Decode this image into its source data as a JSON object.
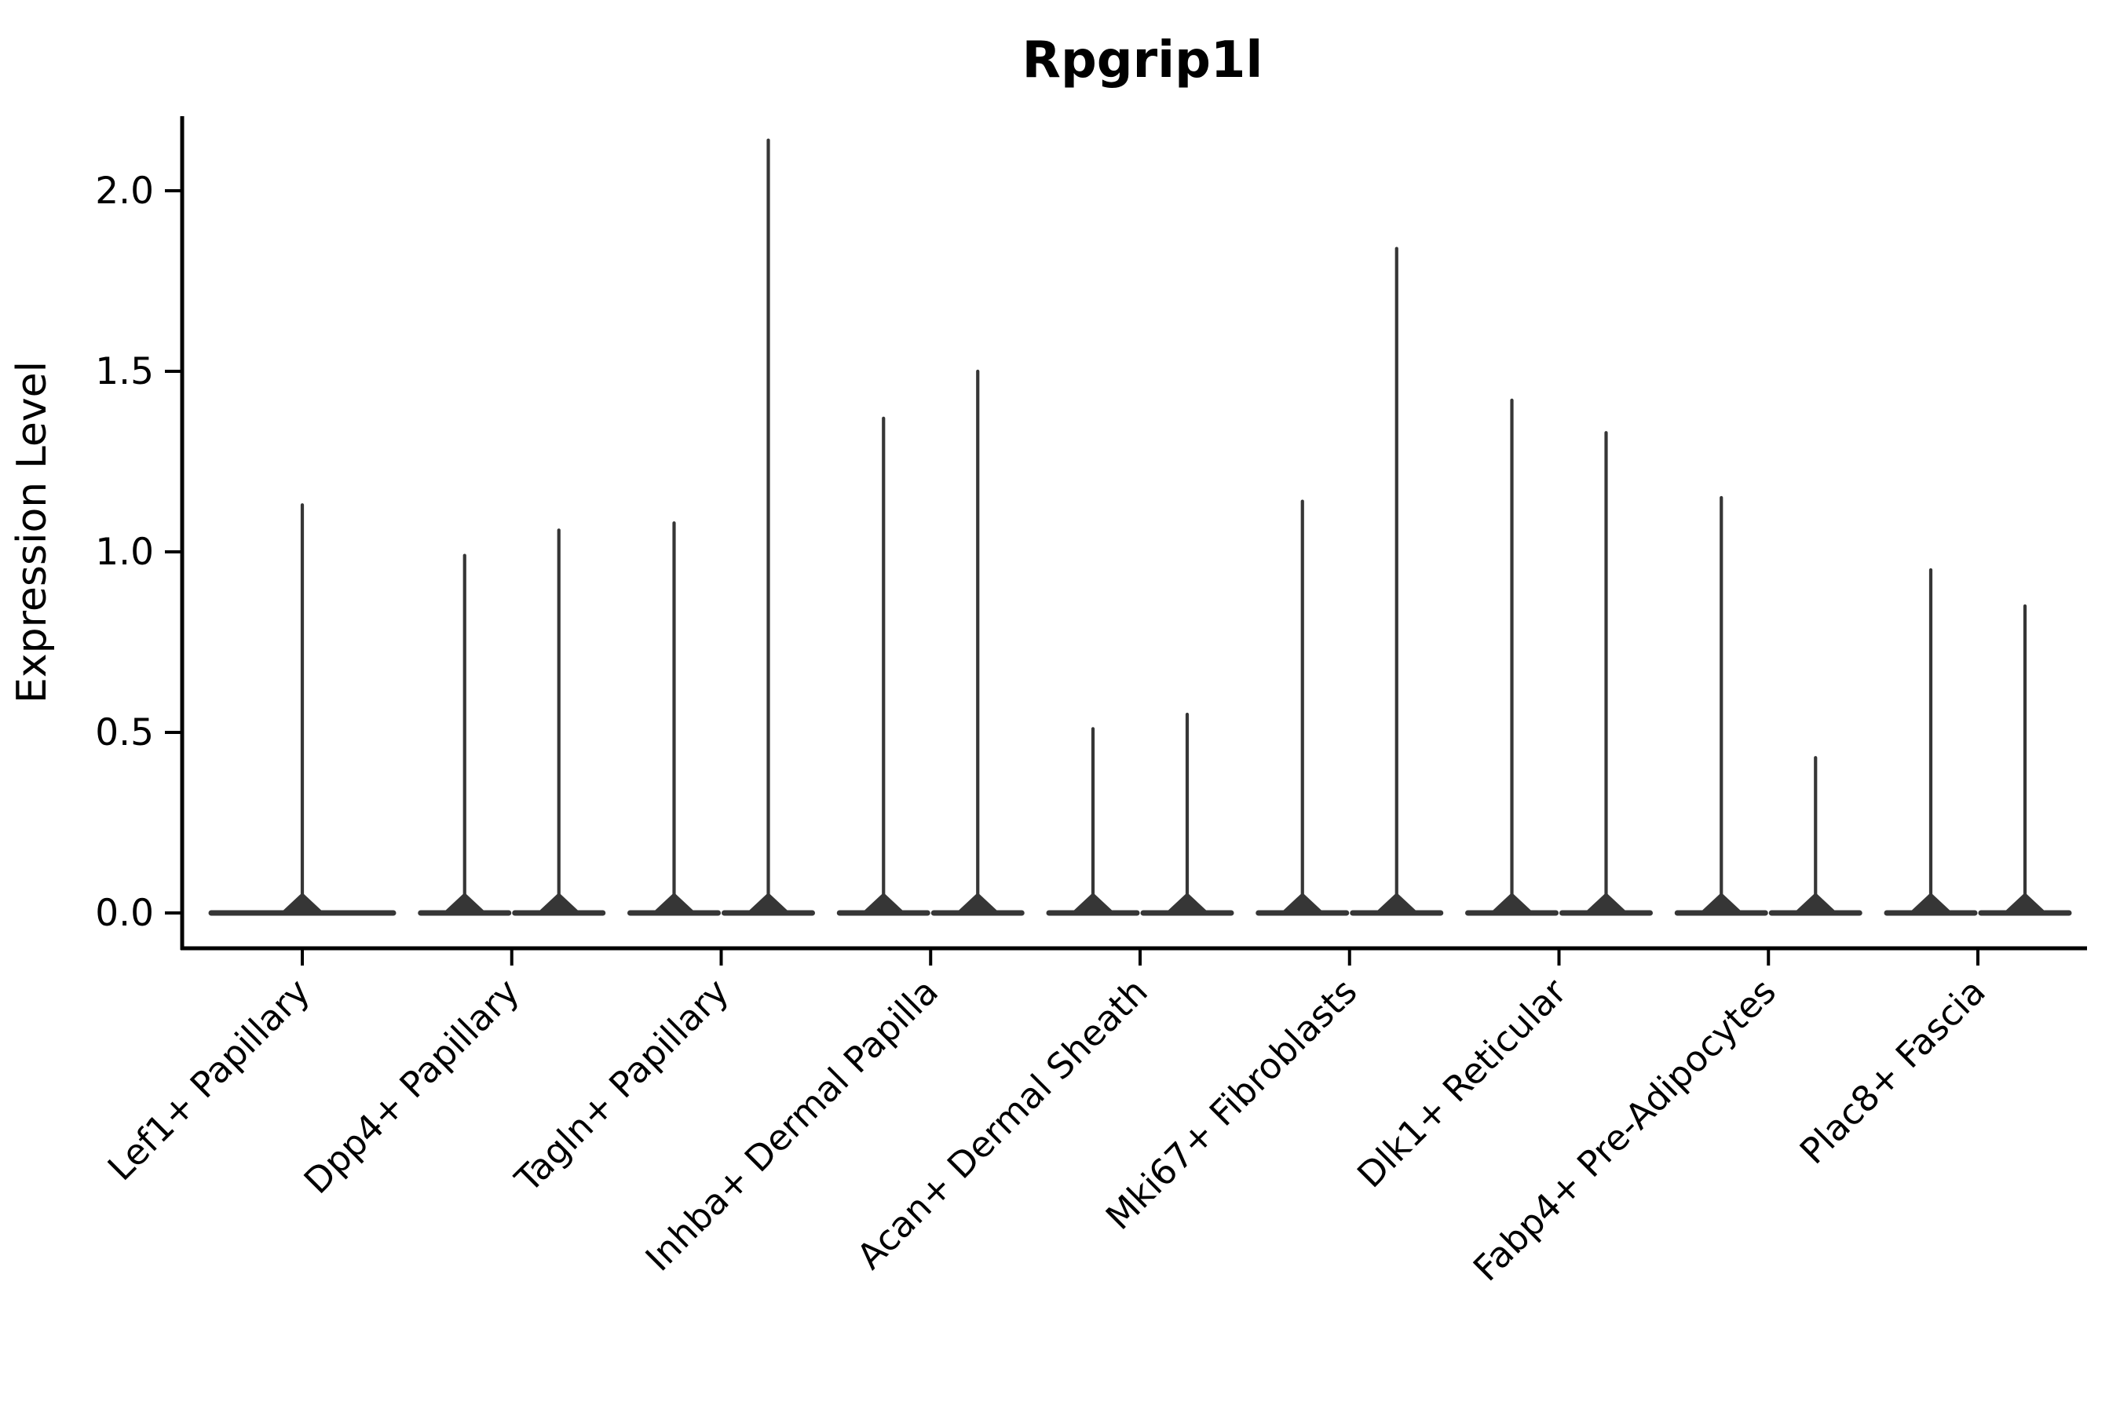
{
  "title": "Rpgrip1l",
  "y_axis": {
    "label": "Expression Level",
    "tick_labels": [
      "0.0",
      "0.5",
      "1.0",
      "1.5",
      "2.0"
    ]
  },
  "x_axis": {
    "categories": [
      "Lef1+ Papillary",
      "Dpp4+ Papillary",
      "Tagln+ Papillary",
      "Inhba+ Dermal Papilla",
      "Acan+ Dermal Sheath",
      "Mki67+ Fibroblasts",
      "Dlk1+ Reticular",
      "Fabp4+ Pre-Adipocytes",
      "Plac8+ Fascia"
    ]
  },
  "colors": {
    "violin": "#363636",
    "axis": "#000000",
    "text": "#000000",
    "background": "#ffffff"
  },
  "chart_data": {
    "type": "violin",
    "title": "Rpgrip1l",
    "xlabel": "",
    "ylabel": "Expression Level",
    "ylim": [
      -0.1,
      2.3
    ],
    "yticks": [
      0.0,
      0.5,
      1.0,
      1.5,
      2.0
    ],
    "grid": false,
    "legend": "none",
    "categories": [
      "Lef1+ Papillary",
      "Dpp4+ Papillary",
      "Tagln+ Papillary",
      "Inhba+ Dermal Papilla",
      "Acan+ Dermal Sheath",
      "Mki67+ Fibroblasts",
      "Dlk1+ Reticular",
      "Fabp4+ Pre-Adipocytes",
      "Plac8+ Fascia"
    ],
    "violins": [
      [
        1.13
      ],
      [
        0.99,
        1.06
      ],
      [
        1.08,
        2.14
      ],
      [
        1.37,
        1.5
      ],
      [
        0.51,
        0.55
      ],
      [
        1.14,
        1.84
      ],
      [
        1.42,
        1.33
      ],
      [
        1.15,
        0.43
      ],
      [
        0.95,
        0.85
      ]
    ],
    "description": "Each violin has nearly all density at expression 0 (wide flat base) and a thin vertical spike reaching the listed maximum expression value. The first category shows a single full-width violin; all other categories show two side-by-side violins."
  }
}
